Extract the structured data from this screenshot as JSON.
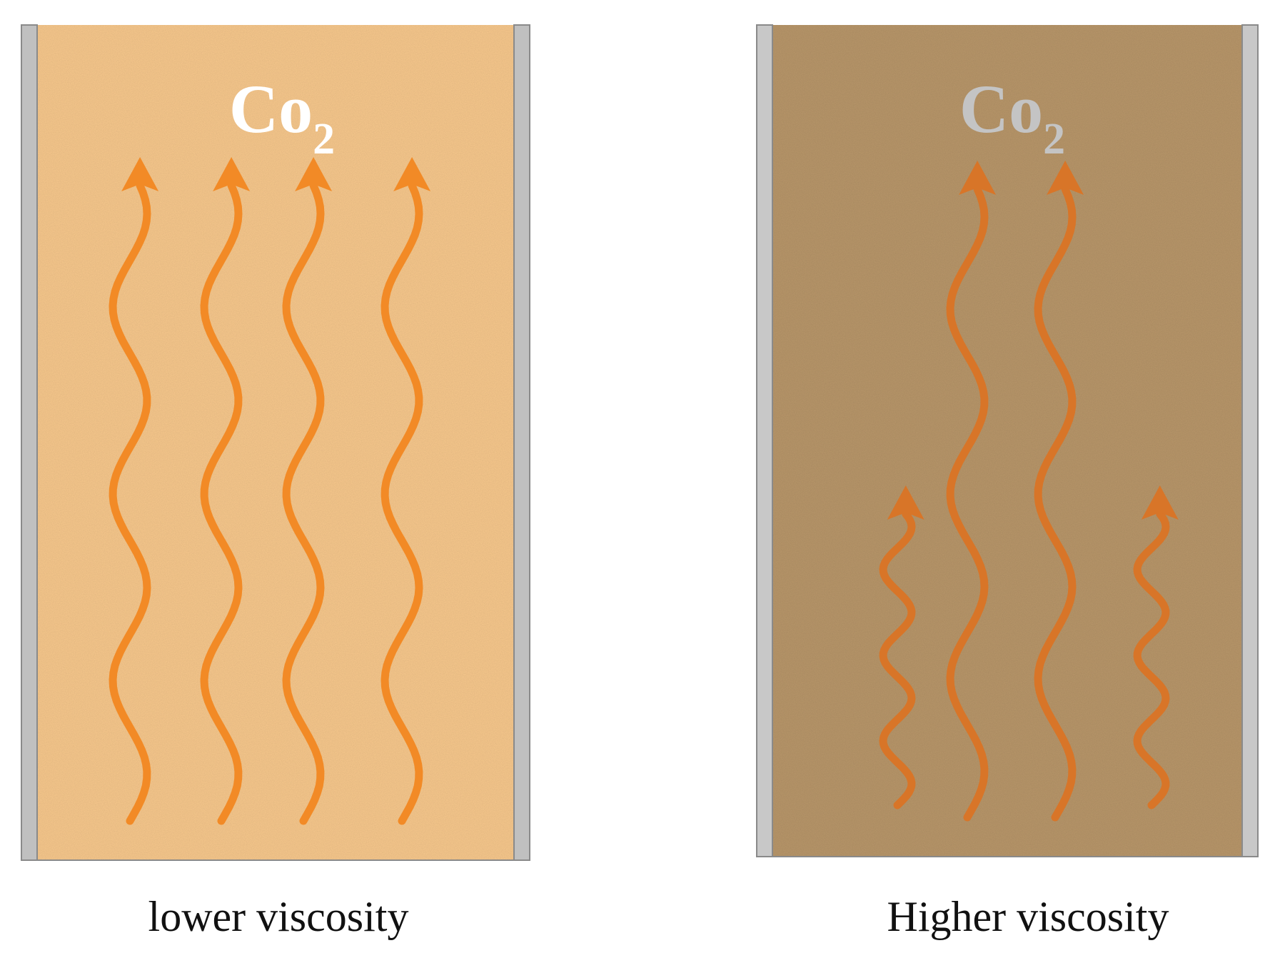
{
  "panels": [
    {
      "id": "low",
      "gas_label": {
        "main": "Co",
        "sub": "2"
      },
      "caption": "lower viscosity",
      "fill_color": "#f9c98d",
      "label_color": "#ffffff",
      "arrow_color": "#f28a26",
      "wall_color": "#c0c0c0",
      "full_arrows": 4,
      "short_arrows": 0
    },
    {
      "id": "high",
      "gas_label": {
        "main": "Co",
        "sub": "2"
      },
      "caption": "Higher viscosity",
      "fill_color": "#b9976a",
      "label_color": "#c4c4c4",
      "arrow_color": "#d87528",
      "wall_color": "#c8c8c8",
      "full_arrows": 2,
      "short_arrows": 2
    }
  ]
}
